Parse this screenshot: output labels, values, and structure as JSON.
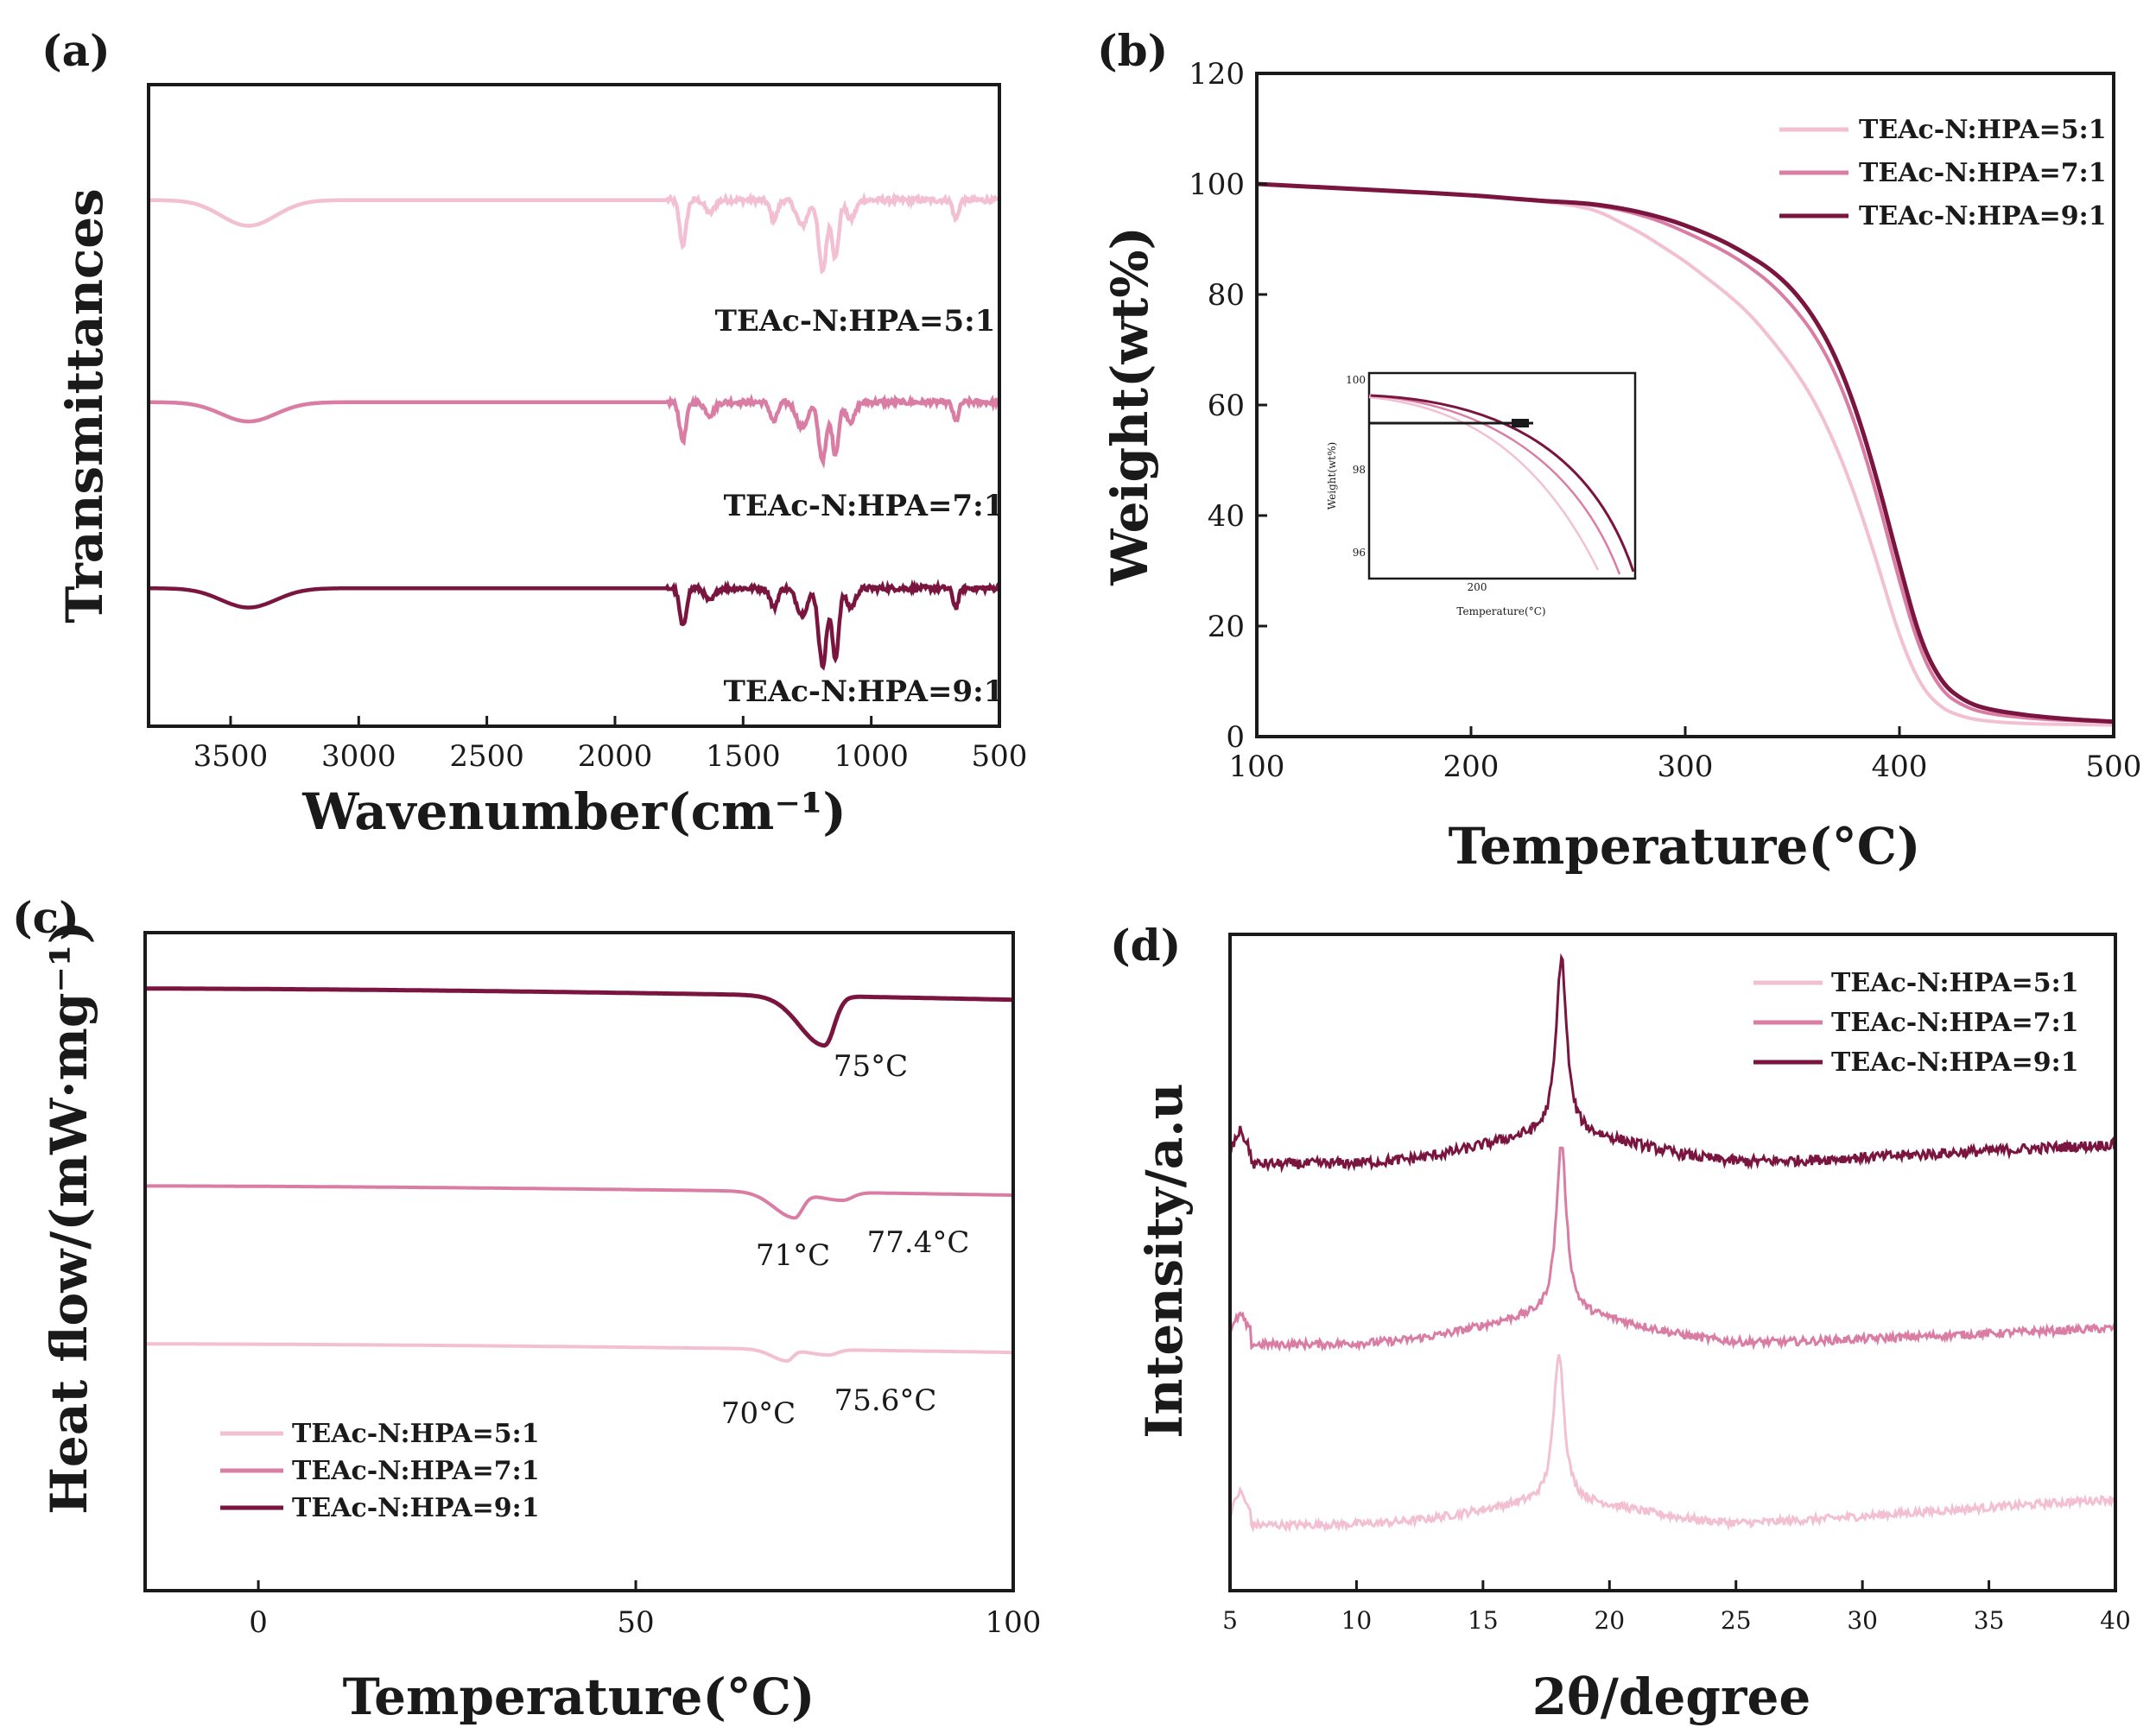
{
  "colors": {
    "light": "#f2c0d2",
    "mid": "#d97da5",
    "dark": "#7a1540",
    "axis": "#1a1a1a"
  },
  "chart_data": [
    {
      "id": "a",
      "panel_label": "(a)",
      "type": "line",
      "title": "",
      "xlabel": "Wavenumber(cm⁻¹)",
      "ylabel": "Transmittances",
      "xlim": [
        3820,
        500
      ],
      "ylim": [
        0,
        100
      ],
      "x_ticks": [
        3500,
        3000,
        2500,
        2000,
        1500,
        1000,
        500
      ],
      "y_ticks": [],
      "x_tick_labels": [
        "3500",
        "3000",
        "2500",
        "2000",
        "1500",
        "1000",
        "500"
      ],
      "legend": [],
      "series": [
        {
          "name": "TEAc-N:HPA=5:1",
          "color": "light",
          "baseline": 82,
          "dips": [
            [
              3430,
              4,
              150
            ],
            [
              1735,
              7,
              18
            ],
            [
              1630,
              2,
              25
            ],
            [
              1380,
              3,
              20
            ],
            [
              1270,
              4,
              30
            ],
            [
              1190,
              11,
              22
            ],
            [
              1140,
              9,
              18
            ],
            [
              1080,
              3,
              25
            ],
            [
              670,
              3,
              15
            ]
          ]
        },
        {
          "name": "TEAc-N:HPA=7:1",
          "color": "mid",
          "baseline": 50.5,
          "dips": [
            [
              3430,
              3,
              150
            ],
            [
              1735,
              6,
              18
            ],
            [
              1630,
              2,
              25
            ],
            [
              1380,
              3,
              20
            ],
            [
              1270,
              4,
              30
            ],
            [
              1190,
              9,
              22
            ],
            [
              1140,
              8,
              18
            ],
            [
              1080,
              3,
              25
            ],
            [
              670,
              3,
              15
            ]
          ]
        },
        {
          "name": "TEAc-N:HPA=9:1",
          "color": "dark",
          "baseline": 21.5,
          "dips": [
            [
              3430,
              3,
              150
            ],
            [
              1735,
              6,
              18
            ],
            [
              1630,
              2,
              25
            ],
            [
              1380,
              3,
              20
            ],
            [
              1270,
              4,
              30
            ],
            [
              1190,
              12,
              22
            ],
            [
              1140,
              11,
              18
            ],
            [
              1080,
              3,
              25
            ],
            [
              670,
              3,
              15
            ]
          ]
        }
      ],
      "annotations": [
        {
          "text": "TEAc-N:HPA=5:1",
          "x": 1140,
          "y": 63
        },
        {
          "text": "TEAc-N:HPA=7:1",
          "x": 1110,
          "y": 34
        },
        {
          "text": "TEAc-N:HPA=9:1",
          "x": 1110,
          "y": 5
        }
      ]
    },
    {
      "id": "b",
      "panel_label": "(b)",
      "type": "line",
      "title": "",
      "xlabel": "Temperature(°C)",
      "ylabel": "Weight(wt%)",
      "xlim": [
        100,
        500
      ],
      "ylim": [
        0,
        120
      ],
      "x_ticks": [
        100,
        200,
        300,
        400,
        500
      ],
      "y_ticks": [
        0,
        20,
        40,
        60,
        80,
        100,
        120
      ],
      "x_tick_labels": [
        "100",
        "200",
        "300",
        "400",
        "500"
      ],
      "y_tick_labels": [
        "0",
        "20",
        "40",
        "60",
        "80",
        "100",
        "120"
      ],
      "legend": [
        "TEAc-N:HPA=5:1",
        "TEAc-N:HPA=7:1",
        "TEAc-N:HPA=9:1"
      ],
      "legend_position": "top-right",
      "series": [
        {
          "name": "TEAc-N:HPA=5:1",
          "color": "light",
          "x": [
            100,
            150,
            200,
            230,
            250,
            260,
            270,
            280,
            290,
            300,
            310,
            320,
            330,
            340,
            350,
            360,
            370,
            380,
            390,
            400,
            410,
            420,
            430,
            440,
            460,
            480,
            500
          ],
          "y": [
            100,
            99,
            98,
            97,
            96,
            95,
            93,
            91,
            88.5,
            86,
            83,
            80,
            76.5,
            72,
            67,
            61,
            53,
            43,
            31,
            18,
            9,
            5,
            3.5,
            2.8,
            2.3,
            2.2,
            2.1
          ]
        },
        {
          "name": "TEAc-N:HPA=7:1",
          "color": "mid",
          "x": [
            100,
            150,
            200,
            230,
            250,
            260,
            270,
            280,
            290,
            300,
            310,
            320,
            330,
            340,
            350,
            360,
            370,
            380,
            390,
            400,
            410,
            420,
            430,
            440,
            460,
            480,
            500
          ],
          "y": [
            100,
            99,
            98,
            97,
            96.5,
            96,
            95.3,
            94.3,
            93,
            91.3,
            89.5,
            87.5,
            85,
            82,
            78,
            73,
            66,
            56,
            43,
            28,
            15,
            8,
            5.5,
            4.2,
            3.3,
            2.9,
            2.7
          ]
        },
        {
          "name": "TEAc-N:HPA=9:1",
          "color": "dark",
          "x": [
            100,
            150,
            200,
            230,
            250,
            260,
            270,
            280,
            290,
            300,
            310,
            320,
            330,
            340,
            350,
            360,
            370,
            380,
            390,
            400,
            410,
            420,
            430,
            440,
            460,
            480,
            500
          ],
          "y": [
            100,
            99,
            98,
            97,
            96.6,
            96.2,
            95.6,
            94.8,
            93.8,
            92.5,
            91,
            89.2,
            87,
            84.5,
            81,
            76,
            69,
            59,
            46,
            31,
            17,
            9.5,
            6.5,
            5,
            3.8,
            3.1,
            2.7
          ]
        }
      ],
      "inset": {
        "xlabel": "Temperature(°C)",
        "ylabel": "Weight(wt%)",
        "x_tick_labels": [
          "200"
        ],
        "y_tick_labels": [
          "100",
          "98",
          "96"
        ]
      }
    },
    {
      "id": "c",
      "panel_label": "(c)",
      "type": "line",
      "title": "",
      "xlabel": "Temperature(°C)",
      "ylabel": "Heat flow/(mW·mg⁻¹)",
      "xlim": [
        -15,
        100
      ],
      "ylim": [
        0,
        100
      ],
      "x_ticks": [
        0,
        50,
        100
      ],
      "y_ticks": [],
      "x_tick_labels": [
        "0",
        "50",
        "100"
      ],
      "legend": [
        "TEAc-N:HPA=5:1",
        "TEAc-N:HPA=7:1",
        "TEAc-N:HPA=9:1"
      ],
      "legend_position": "bottom-left",
      "series": [
        {
          "name": "TEAc-N:HPA=5:1",
          "color": "light",
          "start": 37.5,
          "end": 36.2,
          "dips": [
            [
              70,
              1.7,
              1.1
            ],
            [
              75.6,
              0.8,
              1.5
            ]
          ]
        },
        {
          "name": "TEAc-N:HPA=7:1",
          "color": "mid",
          "start": 61.5,
          "end": 60.1,
          "dips": [
            [
              71,
              3.8,
              1.5
            ],
            [
              77.4,
              1.2,
              1.8
            ]
          ]
        },
        {
          "name": "TEAc-N:HPA=9:1",
          "color": "dark",
          "start": 91.5,
          "end": 89.8,
          "dips": [
            [
              75,
              7.5,
              1.8
            ]
          ]
        }
      ],
      "annotations": [
        {
          "text": "75°C",
          "x": 78,
          "y": 79.5
        },
        {
          "text": "71°C",
          "x": 70.4,
          "y": 51.5
        },
        {
          "text": "77.4°C",
          "x": 81.3,
          "y": 53.5
        },
        {
          "text": "70°C",
          "x": 66.4,
          "y": 27.5
        },
        {
          "text": "75.6°C",
          "x": 78.5,
          "y": 29.5
        }
      ]
    },
    {
      "id": "d",
      "panel_label": "(d)",
      "type": "line",
      "title": "",
      "xlabel": "2θ/degree",
      "ylabel": "Intensity/a.u",
      "xlim": [
        5,
        40
      ],
      "ylim": [
        0,
        100
      ],
      "x_ticks": [
        5,
        10,
        15,
        20,
        25,
        30,
        35,
        40
      ],
      "y_ticks": [],
      "x_tick_labels": [
        "5",
        "10",
        "15",
        "20",
        "25",
        "30",
        "35",
        "40"
      ],
      "legend": [
        "TEAc-N:HPA=5:1",
        "TEAc-N:HPA=7:1",
        "TEAc-N:HPA=9:1"
      ],
      "legend_position": "top-right",
      "series": [
        {
          "name": "TEAc-N:HPA=5:1",
          "color": "light",
          "base": 10,
          "tail": 14,
          "low_start": 13,
          "peak_x": 18,
          "peak_h": 23,
          "broad_h": 3.5,
          "noise": 0.6
        },
        {
          "name": "TEAc-N:HPA=7:1",
          "color": "mid",
          "base": 37.5,
          "tail": 40,
          "low_start": 40,
          "peak_x": 18.1,
          "peak_h": 26,
          "broad_h": 4.5,
          "noise": 0.6
        },
        {
          "name": "TEAc-N:HPA=9:1",
          "color": "dark",
          "base": 65,
          "tail": 68,
          "low_start": 68,
          "peak_x": 18.1,
          "peak_h": 27,
          "broad_h": 4.5,
          "noise": 0.8
        }
      ]
    }
  ]
}
